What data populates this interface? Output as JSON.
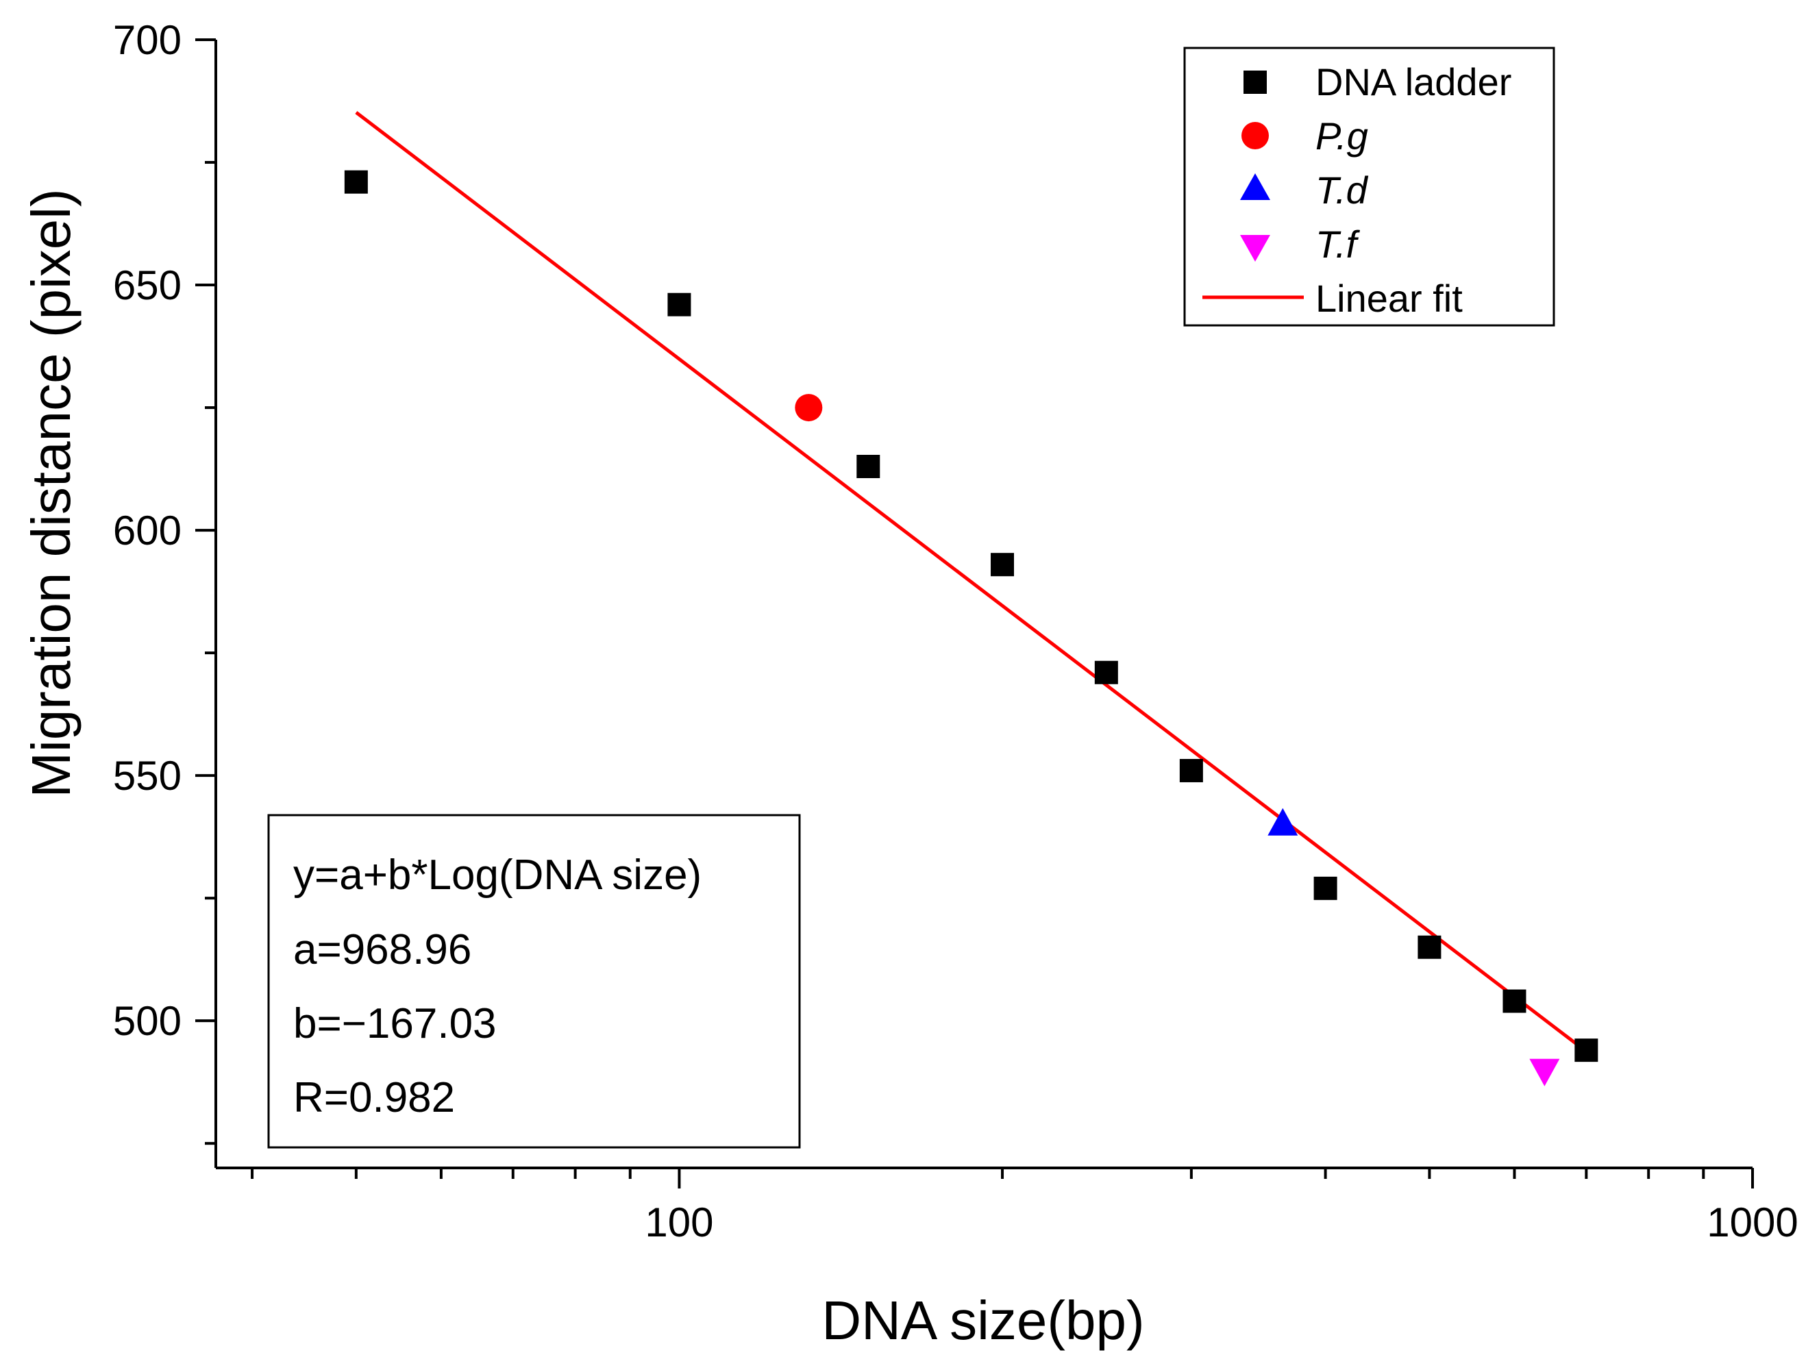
{
  "chart_data": {
    "type": "scatter",
    "xlabel": "DNA size(bp)",
    "ylabel": "Migration distance (pixel)",
    "xscale": "log",
    "xlim": [
      37,
      1000
    ],
    "ylim": [
      470,
      700
    ],
    "xticks": [
      {
        "value": 100,
        "label": "100"
      },
      {
        "value": 1000,
        "label": "1000"
      }
    ],
    "yticks": [
      {
        "value": 500,
        "label": "500"
      },
      {
        "value": 550,
        "label": "550"
      },
      {
        "value": 600,
        "label": "600"
      },
      {
        "value": 650,
        "label": "650"
      },
      {
        "value": 700,
        "label": "700"
      }
    ],
    "series": [
      {
        "name": "DNA ladder",
        "marker": "square",
        "color": "#000000",
        "points": [
          {
            "x": 50,
            "y": 671
          },
          {
            "x": 100,
            "y": 646
          },
          {
            "x": 150,
            "y": 613
          },
          {
            "x": 200,
            "y": 593
          },
          {
            "x": 250,
            "y": 571
          },
          {
            "x": 300,
            "y": 551
          },
          {
            "x": 400,
            "y": 527
          },
          {
            "x": 500,
            "y": 515
          },
          {
            "x": 600,
            "y": 504
          },
          {
            "x": 700,
            "y": 494
          }
        ]
      },
      {
        "name": "P.g",
        "italic": true,
        "marker": "circle",
        "color": "#ff0000",
        "points": [
          {
            "x": 132,
            "y": 625
          }
        ]
      },
      {
        "name": "T.d",
        "italic": true,
        "marker": "triangle-up",
        "color": "#0000ff",
        "points": [
          {
            "x": 365,
            "y": 540
          }
        ]
      },
      {
        "name": "T.f",
        "italic": true,
        "marker": "triangle-down",
        "color": "#ff00ff",
        "points": [
          {
            "x": 640,
            "y": 490
          }
        ]
      }
    ],
    "fit": {
      "name": "Linear fit",
      "color": "#ff0000",
      "x_start": 50,
      "x_end": 700
    },
    "legend_position": "top-right",
    "equation_box": {
      "lines": [
        "y=a+b*Log(DNA size)",
        "a=968.96",
        "b=−167.03",
        "R=0.982"
      ]
    }
  }
}
